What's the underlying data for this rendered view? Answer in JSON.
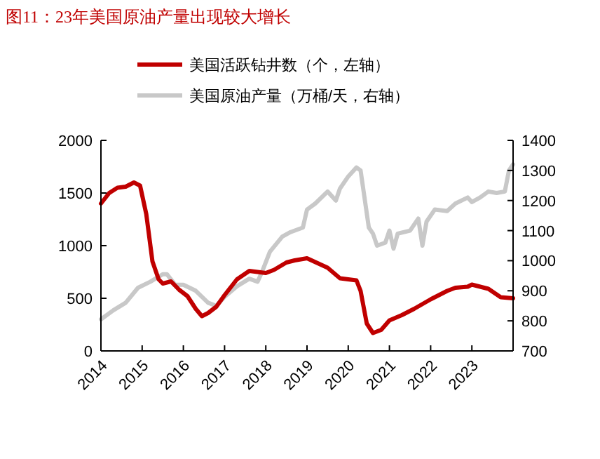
{
  "chart_data": {
    "type": "line",
    "title": "图11：23年美国原油产量出现较大增长",
    "legend": "top",
    "grid": false,
    "marker": "none",
    "line_style": "solid",
    "xlim": [
      2014,
      2024
    ],
    "xticks": [
      2014,
      2015,
      2016,
      2017,
      2018,
      2019,
      2020,
      2021,
      2022,
      2023
    ],
    "ylim": [
      0,
      2000
    ],
    "yticks": [
      0,
      500,
      1000,
      1500,
      2000
    ],
    "y2lim": [
      700,
      1400
    ],
    "y2ticks": [
      700,
      800,
      900,
      1000,
      1100,
      1200,
      1300,
      1400
    ],
    "series": [
      {
        "name": "美国活跃钻井数（个，左轴）",
        "color": "#c00000",
        "x": [
          2014.0,
          2014.2,
          2014.4,
          2014.6,
          2014.8,
          2014.95,
          2015.1,
          2015.25,
          2015.4,
          2015.5,
          2015.7,
          2015.9,
          2016.1,
          2016.3,
          2016.45,
          2016.6,
          2016.8,
          2017.0,
          2017.3,
          2017.6,
          2017.8,
          2018.0,
          2018.2,
          2018.5,
          2018.7,
          2019.0,
          2019.5,
          2019.8,
          2020.2,
          2020.3,
          2020.45,
          2020.6,
          2020.8,
          2021.0,
          2021.3,
          2021.6,
          2022.0,
          2022.4,
          2022.6,
          2022.9,
          2023.0,
          2023.4,
          2023.7,
          2024.0
        ],
        "values": [
          1400,
          1500,
          1550,
          1560,
          1600,
          1570,
          1300,
          850,
          680,
          640,
          660,
          580,
          520,
          400,
          330,
          360,
          420,
          530,
          680,
          760,
          750,
          740,
          770,
          840,
          860,
          880,
          790,
          690,
          670,
          570,
          260,
          170,
          200,
          290,
          340,
          400,
          490,
          570,
          600,
          610,
          630,
          590,
          510,
          500
        ]
      },
      {
        "name": "美国原油产量（万桶/天，右轴）",
        "color": "#c8c8c8",
        "axis": "y2",
        "x": [
          2014.0,
          2014.3,
          2014.6,
          2014.9,
          2015.2,
          2015.5,
          2015.6,
          2015.8,
          2016.0,
          2016.3,
          2016.6,
          2016.8,
          2017.0,
          2017.3,
          2017.6,
          2017.8,
          2017.9,
          2018.1,
          2018.4,
          2018.6,
          2018.9,
          2019.0,
          2019.2,
          2019.5,
          2019.7,
          2019.8,
          2020.0,
          2020.2,
          2020.3,
          2020.5,
          2020.6,
          2020.7,
          2020.9,
          2021.0,
          2021.1,
          2021.2,
          2021.5,
          2021.7,
          2021.8,
          2021.9,
          2022.1,
          2022.4,
          2022.6,
          2022.9,
          2023.0,
          2023.2,
          2023.4,
          2023.6,
          2023.8,
          2023.9,
          2024.0
        ],
        "values": [
          805,
          835,
          860,
          910,
          930,
          955,
          955,
          920,
          920,
          900,
          860,
          850,
          880,
          915,
          940,
          930,
          960,
          1030,
          1080,
          1095,
          1110,
          1170,
          1190,
          1230,
          1200,
          1240,
          1280,
          1310,
          1300,
          1110,
          1090,
          1050,
          1060,
          1100,
          1040,
          1090,
          1100,
          1140,
          1050,
          1130,
          1170,
          1165,
          1190,
          1210,
          1195,
          1210,
          1230,
          1225,
          1230,
          1300,
          1320
        ]
      }
    ]
  }
}
